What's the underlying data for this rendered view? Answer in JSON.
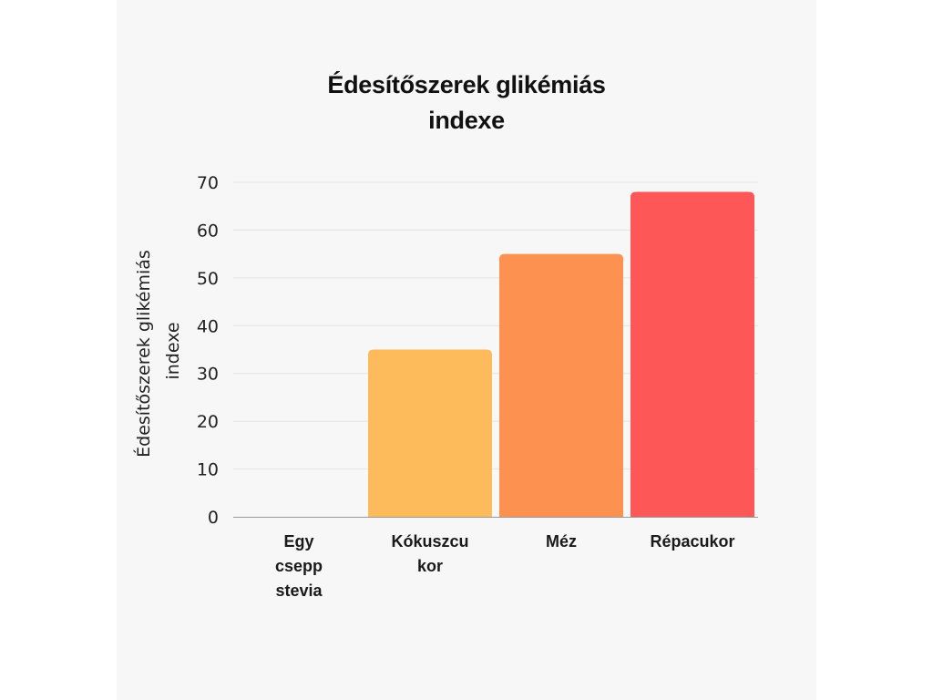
{
  "chart_data": {
    "type": "bar",
    "title": "Édesítőszerek glikémiás indexe",
    "title_lines": [
      "Édesítőszerek glikémiás",
      "indexe"
    ],
    "ylabel": "Édesítőszerek glikémiás indexe",
    "ylabel_lines": [
      "Édesítőszerek glikémiás",
      "indexe"
    ],
    "xlabel": "",
    "categories": [
      "Egy csepp stevia",
      "Kókuszcukor",
      "Méz",
      "Répacukor"
    ],
    "category_lines": [
      [
        "Egy",
        "csepp",
        "stevia"
      ],
      [
        "Kókuszcu",
        "kor"
      ],
      [
        "Méz"
      ],
      [
        "Répacukor"
      ]
    ],
    "values": [
      0,
      35,
      55,
      68
    ],
    "colors": [
      "#fdbb5b",
      "#fdbb5b",
      "#fd914f",
      "#fe5757"
    ],
    "ylim": [
      0,
      70
    ],
    "yticks": [
      0,
      10,
      20,
      30,
      40,
      50,
      60,
      70
    ],
    "grid": true,
    "legend": "none"
  }
}
